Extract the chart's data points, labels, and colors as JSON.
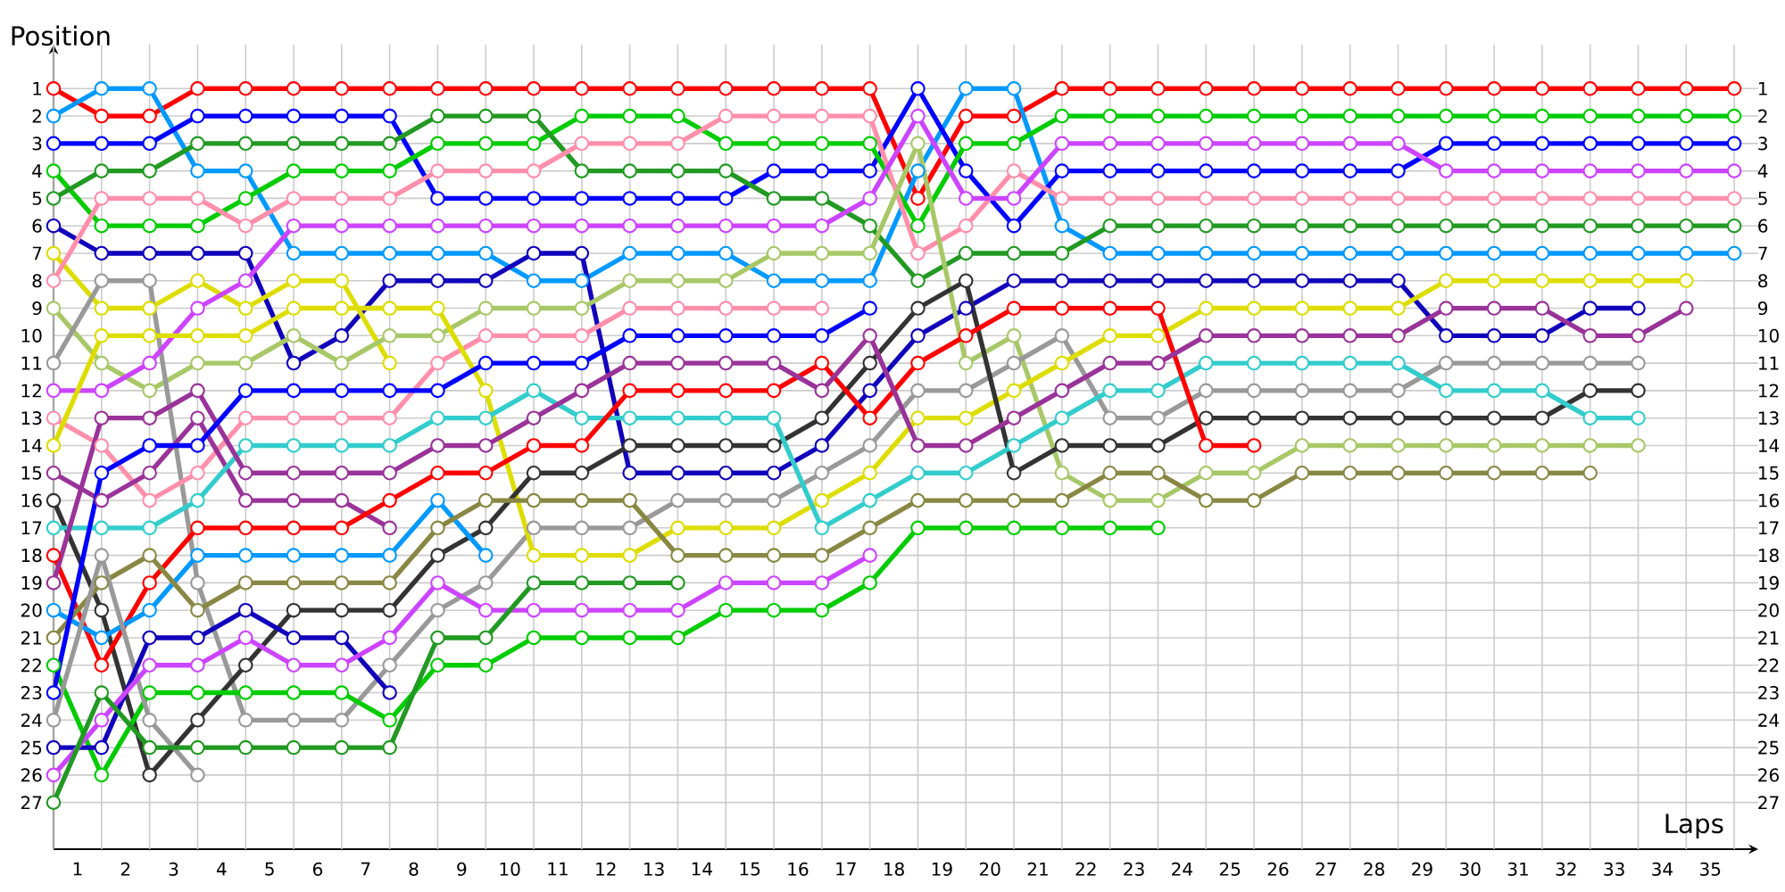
{
  "chart_data": {
    "type": "line",
    "xlabel": "Laps",
    "ylabel": "Position",
    "grid": true,
    "marker": "circle",
    "line_style": "solid",
    "x": [
      0,
      1,
      2,
      3,
      4,
      5,
      6,
      7,
      8,
      9,
      10,
      11,
      12,
      13,
      14,
      15,
      16,
      17,
      18,
      19,
      20,
      21,
      22,
      23,
      24,
      25,
      26,
      27,
      28,
      29,
      30,
      31,
      32,
      33,
      34,
      35
    ],
    "xlim": [
      0,
      35.5
    ],
    "xticks": [
      {
        "value": 0,
        "label": null
      },
      {
        "value": 0.5,
        "label": "1"
      },
      {
        "value": 1,
        "label": null
      },
      {
        "value": 1.5,
        "label": "2"
      },
      {
        "value": 2,
        "label": null
      },
      {
        "value": 2.5,
        "label": "3"
      },
      {
        "value": 3,
        "label": null
      },
      {
        "value": 3.5,
        "label": "4"
      },
      {
        "value": 4,
        "label": null
      },
      {
        "value": 4.5,
        "label": "5"
      },
      {
        "value": 5,
        "label": null
      },
      {
        "value": 5.5,
        "label": "6"
      },
      {
        "value": 6,
        "label": null
      },
      {
        "value": 6.5,
        "label": "7"
      },
      {
        "value": 7,
        "label": null
      },
      {
        "value": 7.5,
        "label": "8"
      },
      {
        "value": 8,
        "label": null
      },
      {
        "value": 8.5,
        "label": "9"
      },
      {
        "value": 9,
        "label": null
      },
      {
        "value": 9.5,
        "label": "10"
      },
      {
        "value": 10,
        "label": null
      },
      {
        "value": 10.5,
        "label": "11"
      },
      {
        "value": 11,
        "label": null
      },
      {
        "value": 11.5,
        "label": "12"
      },
      {
        "value": 12,
        "label": null
      },
      {
        "value": 12.5,
        "label": "13"
      },
      {
        "value": 13,
        "label": null
      },
      {
        "value": 13.5,
        "label": "14"
      },
      {
        "value": 14,
        "label": null
      },
      {
        "value": 14.5,
        "label": "15"
      },
      {
        "value": 15,
        "label": null
      },
      {
        "value": 15.5,
        "label": "16"
      },
      {
        "value": 16,
        "label": null
      },
      {
        "value": 16.5,
        "label": "17"
      },
      {
        "value": 17,
        "label": null
      },
      {
        "value": 17.5,
        "label": "18"
      },
      {
        "value": 18,
        "label": null
      },
      {
        "value": 18.5,
        "label": "19"
      },
      {
        "value": 19,
        "label": null
      },
      {
        "value": 19.5,
        "label": "20"
      },
      {
        "value": 20,
        "label": null
      },
      {
        "value": 20.5,
        "label": "21"
      },
      {
        "value": 21,
        "label": null
      },
      {
        "value": 21.5,
        "label": "22"
      },
      {
        "value": 22,
        "label": null
      },
      {
        "value": 22.5,
        "label": "23"
      },
      {
        "value": 23,
        "label": null
      },
      {
        "value": 23.5,
        "label": "24"
      },
      {
        "value": 24,
        "label": null
      },
      {
        "value": 24.5,
        "label": "25"
      },
      {
        "value": 25,
        "label": null
      },
      {
        "value": 25.5,
        "label": "26"
      },
      {
        "value": 26,
        "label": null
      },
      {
        "value": 26.5,
        "label": "27"
      },
      {
        "value": 27,
        "label": null
      },
      {
        "value": 27.5,
        "label": "28"
      },
      {
        "value": 28,
        "label": null
      },
      {
        "value": 28.5,
        "label": "29"
      },
      {
        "value": 29,
        "label": null
      },
      {
        "value": 29.5,
        "label": "30"
      },
      {
        "value": 30,
        "label": null
      },
      {
        "value": 30.5,
        "label": "31"
      },
      {
        "value": 31,
        "label": null
      },
      {
        "value": 31.5,
        "label": "32"
      },
      {
        "value": 32,
        "label": null
      },
      {
        "value": 32.5,
        "label": "33"
      },
      {
        "value": 33,
        "label": null
      },
      {
        "value": 33.5,
        "label": "34"
      },
      {
        "value": 34,
        "label": null
      },
      {
        "value": 34.5,
        "label": "35"
      },
      {
        "value": 35,
        "label": null
      }
    ],
    "ylim": [
      28.7,
      -0.6
    ],
    "yticks": [
      1,
      2,
      3,
      4,
      5,
      6,
      7,
      8,
      9,
      10,
      11,
      12,
      13,
      14,
      15,
      16,
      17,
      18,
      19,
      20,
      21,
      22,
      23,
      24,
      25,
      26,
      27
    ],
    "y2lim": [
      28.7,
      -0.6
    ],
    "y2ticks": [
      1,
      2,
      3,
      4,
      5,
      6,
      7,
      8,
      9,
      10,
      11,
      12,
      13,
      14,
      15,
      16,
      17,
      18,
      19,
      20,
      21,
      22,
      23,
      24,
      25,
      26,
      27
    ],
    "series": [
      {
        "color": "#ff0000",
        "values": [
          1,
          2,
          2,
          1,
          1,
          1,
          1,
          1,
          1,
          1,
          1,
          1,
          1,
          1,
          1,
          1,
          1,
          1,
          5,
          2,
          2,
          1,
          1,
          1,
          1,
          1,
          1,
          1,
          1,
          1,
          1,
          1,
          1,
          1,
          1,
          1
        ]
      },
      {
        "color": "#0099ff",
        "values": [
          2,
          1,
          1,
          4,
          4,
          7,
          7,
          7,
          7,
          7,
          8,
          8,
          7,
          7,
          7,
          8,
          8,
          8,
          4,
          1,
          1,
          6,
          7,
          7,
          7,
          7,
          7,
          7,
          7,
          7,
          7,
          7,
          7,
          7,
          7,
          7
        ]
      },
      {
        "color": "#0000ff",
        "values": [
          3,
          3,
          3,
          2,
          2,
          2,
          2,
          2,
          5,
          5,
          5,
          5,
          5,
          5,
          5,
          4,
          4,
          4,
          1,
          4,
          6,
          4,
          4,
          4,
          4,
          4,
          4,
          4,
          4,
          3,
          3,
          3,
          3,
          3,
          3,
          3
        ]
      },
      {
        "color": "#00cc00",
        "values": [
          4,
          6,
          6,
          6,
          5,
          4,
          4,
          4,
          3,
          3,
          3,
          2,
          2,
          2,
          3,
          3,
          3,
          3,
          6,
          3,
          3,
          2,
          2,
          2,
          2,
          2,
          2,
          2,
          2,
          2,
          2,
          2,
          2,
          2,
          2,
          2
        ]
      },
      {
        "color": "#229922",
        "values": [
          5,
          4,
          4,
          3,
          3,
          3,
          3,
          3,
          2,
          2,
          2,
          4,
          4,
          4,
          4,
          5,
          5,
          6,
          8,
          7,
          7,
          7,
          6,
          6,
          6,
          6,
          6,
          6,
          6,
          6,
          6,
          6,
          6,
          6,
          6,
          6
        ]
      },
      {
        "color": "#1100bb",
        "values": [
          6,
          7,
          7,
          7,
          7,
          11,
          10,
          8,
          8,
          8,
          7,
          7,
          15,
          15,
          15,
          15,
          14,
          12,
          10,
          9,
          8,
          8,
          8,
          8,
          8,
          8,
          8,
          8,
          8,
          10,
          10,
          10,
          9,
          9,
          null,
          null
        ]
      },
      {
        "color": "#dddd00",
        "values": [
          7,
          9,
          9,
          8,
          9,
          8,
          8,
          11,
          null,
          null,
          null,
          null,
          null,
          null,
          null,
          null,
          null,
          null,
          null,
          null,
          null,
          null,
          null,
          null,
          null,
          null,
          null,
          null,
          null,
          null,
          null,
          null,
          null,
          null,
          null,
          null
        ]
      },
      {
        "color": "#ff8fab",
        "values": [
          8,
          5,
          5,
          5,
          6,
          5,
          5,
          5,
          4,
          4,
          4,
          3,
          3,
          3,
          2,
          2,
          2,
          2,
          7,
          6,
          4,
          5,
          5,
          5,
          5,
          5,
          5,
          5,
          5,
          5,
          5,
          5,
          5,
          5,
          5,
          5
        ]
      },
      {
        "color": "#a8c868",
        "values": [
          9,
          11,
          12,
          11,
          11,
          10,
          11,
          10,
          10,
          9,
          9,
          9,
          8,
          8,
          8,
          7,
          7,
          7,
          3,
          11,
          10,
          15,
          16,
          16,
          15,
          15,
          14,
          14,
          14,
          14,
          14,
          14,
          14,
          14,
          null,
          null
        ]
      },
      {
        "color": "#999999",
        "values": [
          11,
          8,
          8,
          19,
          24,
          24,
          24,
          22,
          20,
          19,
          17,
          17,
          17,
          16,
          16,
          16,
          15,
          14,
          12,
          12,
          11,
          10,
          13,
          13,
          12,
          12,
          12,
          12,
          12,
          11,
          11,
          11,
          11,
          11,
          null,
          null
        ]
      },
      {
        "color": "#cc44ff",
        "values": [
          12,
          12,
          11,
          9,
          8,
          6,
          6,
          6,
          6,
          6,
          6,
          6,
          6,
          6,
          6,
          6,
          6,
          5,
          2,
          5,
          5,
          3,
          3,
          3,
          3,
          3,
          3,
          3,
          3,
          4,
          4,
          4,
          4,
          4,
          4,
          4
        ]
      },
      {
        "color": "#ff8fab",
        "values": [
          13,
          14,
          16,
          15,
          13,
          13,
          13,
          13,
          11,
          10,
          10,
          10,
          9,
          9,
          9,
          9,
          9,
          null,
          null,
          null,
          null,
          null,
          null,
          null,
          null,
          null,
          null,
          null,
          null,
          null,
          null,
          null,
          null,
          null,
          null,
          null
        ]
      },
      {
        "color": "#dddd00",
        "values": [
          14,
          10,
          10,
          10,
          10,
          9,
          9,
          9,
          9,
          12,
          18,
          18,
          18,
          17,
          17,
          17,
          16,
          15,
          13,
          13,
          12,
          11,
          10,
          10,
          9,
          9,
          9,
          9,
          9,
          8,
          8,
          8,
          8,
          8,
          8,
          null
        ]
      },
      {
        "color": "#993399",
        "values": [
          15,
          16,
          15,
          13,
          16,
          16,
          16,
          17,
          null,
          null,
          null,
          null,
          null,
          null,
          null,
          null,
          null,
          null,
          null,
          null,
          null,
          null,
          null,
          null,
          null,
          null,
          null,
          null,
          null,
          null,
          null,
          null,
          null,
          null,
          null,
          null
        ]
      },
      {
        "color": "#333333",
        "values": [
          16,
          20,
          26,
          24,
          22,
          20,
          20,
          20,
          18,
          17,
          15,
          15,
          14,
          14,
          14,
          14,
          13,
          11,
          9,
          8,
          15,
          14,
          14,
          14,
          13,
          13,
          13,
          13,
          13,
          13,
          13,
          13,
          12,
          12,
          null,
          null
        ]
      },
      {
        "color": "#33cccc",
        "values": [
          17,
          17,
          17,
          16,
          14,
          14,
          14,
          14,
          13,
          13,
          12,
          13,
          13,
          13,
          13,
          13,
          17,
          16,
          15,
          15,
          14,
          13,
          12,
          12,
          11,
          11,
          11,
          11,
          11,
          12,
          12,
          12,
          13,
          13,
          null,
          null
        ]
      },
      {
        "color": "#ff0000",
        "values": [
          18,
          22,
          19,
          17,
          17,
          17,
          17,
          16,
          15,
          15,
          14,
          14,
          12,
          12,
          12,
          12,
          11,
          13,
          11,
          10,
          9,
          9,
          9,
          9,
          14,
          14,
          null,
          null,
          null,
          null,
          null,
          null,
          null,
          null,
          null,
          null
        ]
      },
      {
        "color": "#993399",
        "values": [
          19,
          13,
          13,
          12,
          15,
          15,
          15,
          15,
          14,
          14,
          13,
          12,
          11,
          11,
          11,
          11,
          12,
          10,
          14,
          14,
          13,
          12,
          11,
          11,
          10,
          10,
          10,
          10,
          10,
          9,
          9,
          9,
          10,
          10,
          9,
          null
        ]
      },
      {
        "color": "#0099ff",
        "values": [
          20,
          21,
          20,
          18,
          18,
          18,
          18,
          18,
          16,
          18,
          null,
          null,
          null,
          null,
          null,
          null,
          null,
          null,
          null,
          null,
          null,
          null,
          null,
          null,
          null,
          null,
          null,
          null,
          null,
          null,
          null,
          null,
          null,
          null,
          null,
          null
        ]
      },
      {
        "color": "#888844",
        "values": [
          21,
          19,
          18,
          20,
          19,
          19,
          19,
          19,
          17,
          16,
          16,
          16,
          16,
          18,
          18,
          18,
          18,
          17,
          16,
          16,
          16,
          16,
          15,
          15,
          16,
          16,
          15,
          15,
          15,
          15,
          15,
          15,
          15,
          null,
          null,
          null
        ]
      },
      {
        "color": "#00cc00",
        "values": [
          22,
          26,
          23,
          23,
          23,
          23,
          23,
          24,
          22,
          22,
          21,
          21,
          21,
          21,
          20,
          20,
          20,
          19,
          17,
          17,
          17,
          17,
          17,
          17,
          null,
          null,
          null,
          null,
          null,
          null,
          null,
          null,
          null,
          null,
          null,
          null
        ]
      },
      {
        "color": "#0000ff",
        "values": [
          23,
          15,
          14,
          14,
          12,
          12,
          12,
          12,
          12,
          11,
          11,
          11,
          10,
          10,
          10,
          10,
          10,
          9,
          null,
          null,
          null,
          null,
          null,
          null,
          null,
          null,
          null,
          null,
          null,
          null,
          null,
          null,
          null,
          null,
          null,
          null
        ]
      },
      {
        "color": "#999999",
        "values": [
          24,
          18,
          24,
          26,
          null,
          null,
          null,
          null,
          null,
          null,
          null,
          null,
          null,
          null,
          null,
          null,
          null,
          null,
          null,
          null,
          null,
          null,
          null,
          null,
          null,
          null,
          null,
          null,
          null,
          null,
          null,
          null,
          null,
          null,
          null,
          null
        ]
      },
      {
        "color": "#1100bb",
        "values": [
          25,
          25,
          21,
          21,
          20,
          21,
          21,
          23,
          null,
          null,
          null,
          null,
          null,
          null,
          null,
          null,
          null,
          null,
          null,
          null,
          null,
          null,
          null,
          null,
          null,
          null,
          null,
          null,
          null,
          null,
          null,
          null,
          null,
          null,
          null,
          null
        ]
      },
      {
        "color": "#cc44ff",
        "values": [
          26,
          24,
          22,
          22,
          21,
          22,
          22,
          21,
          19,
          20,
          20,
          20,
          20,
          20,
          19,
          19,
          19,
          18,
          null,
          null,
          null,
          null,
          null,
          null,
          null,
          null,
          null,
          null,
          null,
          null,
          null,
          null,
          null,
          null,
          null,
          null
        ]
      },
      {
        "color": "#229922",
        "values": [
          27,
          23,
          25,
          25,
          25,
          25,
          25,
          25,
          21,
          21,
          19,
          19,
          19,
          19,
          null,
          null,
          null,
          null,
          null,
          null,
          null,
          null,
          null,
          null,
          null,
          null,
          null,
          null,
          null,
          null,
          null,
          null,
          null,
          null,
          null,
          null
        ]
      }
    ]
  }
}
